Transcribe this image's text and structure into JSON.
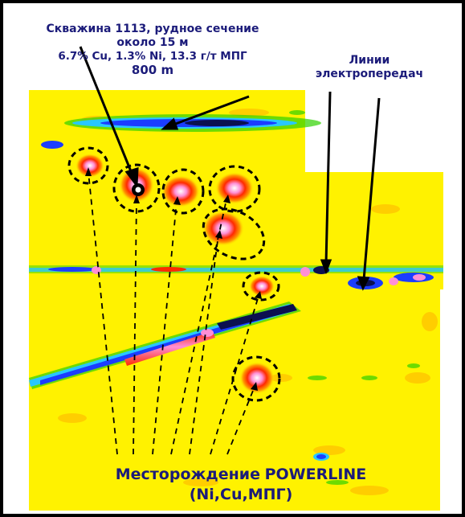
{
  "colors": {
    "field": "#fff200",
    "high": "#ff2a00",
    "peak": "#ff8fd6",
    "core": "#ffffff",
    "low": "#1b3dff",
    "lowCore": "#0b1050",
    "mid": "#29c7ff",
    "green": "#2fd100",
    "text_dark": "#1b1b7a",
    "ellipse": "#000000"
  },
  "well": {
    "line1": "Скважина 1113, рудное сечение",
    "line2": "около 15 м",
    "line3": "6.7% Cu, 1.3% Ni, 13.3 г/т МПГ",
    "line4": "800 m"
  },
  "powerlines": {
    "line1": "Линии",
    "line2": "электропередач"
  },
  "deposit": {
    "line1a": "Месторождение",
    "line1b": "POWERLINE",
    "line2": "(Ni,Cu,МПГ)"
  },
  "icons": {
    "drillhole": "drillhole-marker-icon"
  }
}
